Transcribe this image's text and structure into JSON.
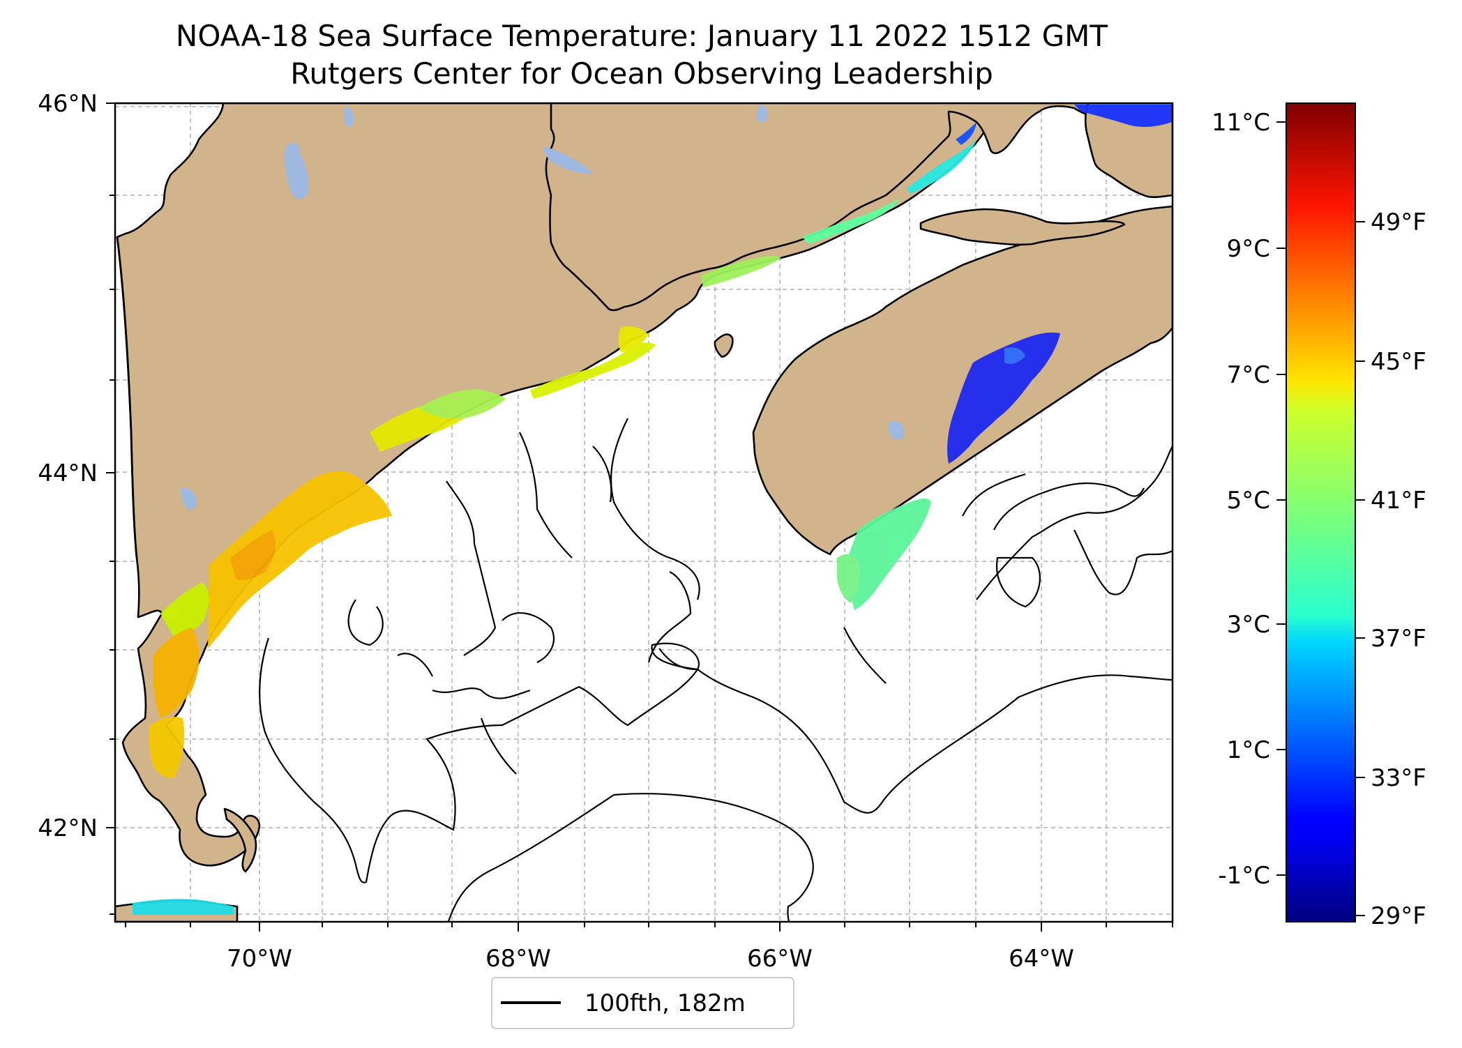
{
  "title": {
    "line1": "NOAA-18 Sea Surface Temperature: January 11 2022 1512 GMT",
    "line2": "Rutgers Center for Ocean Observing Leadership"
  },
  "map": {
    "lat_labels": [
      "46°N",
      "44°N",
      "42°N"
    ],
    "lon_labels": [
      "70°W",
      "68°W",
      "66°W",
      "64°W"
    ],
    "land_color": "#D2B48C",
    "lake_color": "#9DB9E1",
    "gridlines": "dashed",
    "legend": {
      "label": "100fth, 182m",
      "placement": "bottom-center"
    }
  },
  "colorbar": {
    "colormap": "jet",
    "celsius_ticks": [
      "11°C",
      "9°C",
      "7°C",
      "5°C",
      "3°C",
      "1°C",
      "-1°C"
    ],
    "fahrenheit_ticks": [
      "49°F",
      "45°F",
      "41°F",
      "37°F",
      "33°F",
      "29°F"
    ]
  }
}
